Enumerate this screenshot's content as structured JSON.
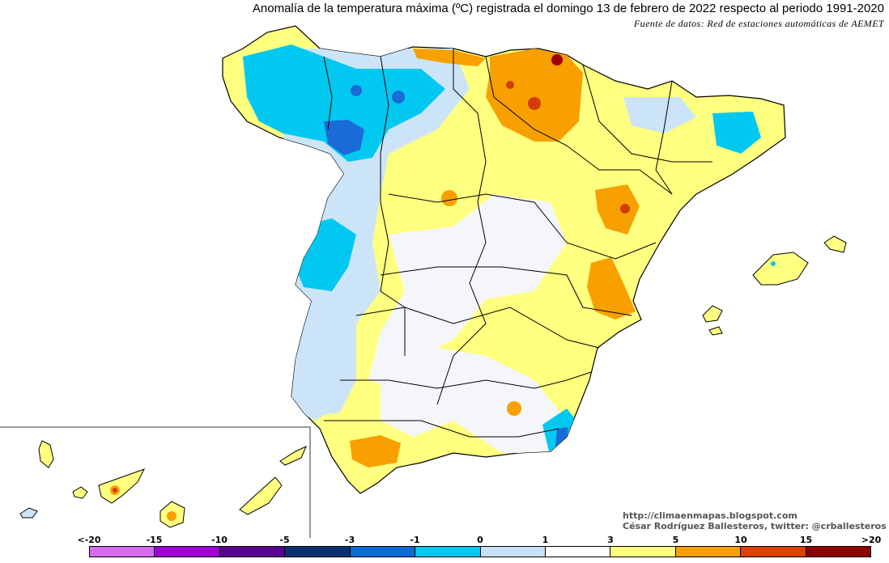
{
  "header": {
    "title": "Anomalía de la temperatura máxima (ºC) registrada el domingo 13 de febrero de 2022 respecto al periodo 1991-2020",
    "source": "Fuente de datos: Red de estaciones automáticas de AEMET"
  },
  "credits": {
    "url": "http://climaenmapas.blogspot.com",
    "author": "César Rodríguez Ballesteros, twitter: @crballesteros"
  },
  "legend": {
    "labels": [
      "<-20",
      "-15",
      "-10",
      "-5",
      "-3",
      "-1",
      "0",
      "1",
      "3",
      "5",
      "10",
      "15",
      ">20"
    ],
    "colors": [
      "#d86cf0",
      "#a000d8",
      "#5a0090",
      "#0a3070",
      "#0a6ad8",
      "#00c8f0",
      "#c8e0f8",
      "#ffffff",
      "#ffff80",
      "#f8a000",
      "#e04000",
      "#900000",
      "#5a3a00"
    ]
  },
  "map": {
    "colors": {
      "sea": "#ffffff",
      "pale_blue": "#cce4f8",
      "cyan": "#00c8f0",
      "dark_blue": "#1a6ad8",
      "neutral": "#f4f6fa",
      "yellow": "#ffff80",
      "orange": "#f8a000",
      "red": "#d23c00",
      "dark_red": "#a00000",
      "border": "#000000"
    }
  }
}
